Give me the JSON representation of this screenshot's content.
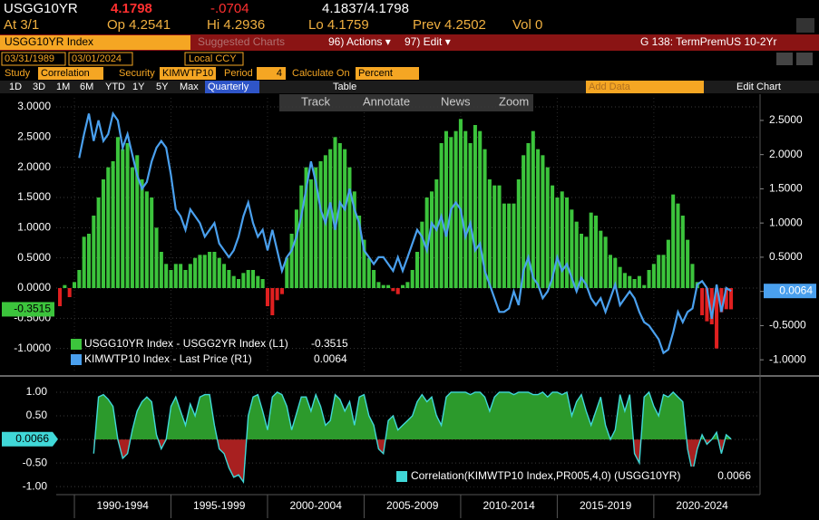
{
  "quote": {
    "ticker": "USGG10YR",
    "last": "4.1798",
    "change": "-.0704",
    "bid_ask": "4.1837/4.1798",
    "at": "At 3/1",
    "open": "Op 4.2541",
    "high": "Hi 4.2936",
    "low": "Lo 4.1759",
    "prev": "Prev 4.2502",
    "volume": "Vol 0"
  },
  "menu": {
    "security": "USGG10YR Index",
    "suggested": "Suggested Charts",
    "actions": "96) Actions ▾",
    "edit": "97) Edit ▾",
    "chart_name": "G 138: TermPremUS 10-2Yr"
  },
  "range": {
    "start": "03/31/1989",
    "end": "03/01/2024",
    "currency": "Local CCY"
  },
  "study": {
    "study_label": "Study",
    "study": "Correlation",
    "security_label": "Security",
    "security": "KIMWTP10",
    "period_label": "Period",
    "period": "4",
    "calc_label": "Calculate On",
    "calc": "Percent"
  },
  "toolbar": {
    "periods": [
      "1D",
      "3D",
      "1M",
      "6M",
      "YTD",
      "1Y",
      "5Y",
      "Max"
    ],
    "frequency": "Quarterly",
    "table": "Table",
    "add_data": "Add Data",
    "edit_chart": "Edit Chart"
  },
  "tools": [
    "Track",
    "Annotate",
    "News",
    "Zoom"
  ],
  "chart_data": [
    {
      "type": "bar_line",
      "x": [
        1989.25,
        1989.5,
        1989.75,
        1990,
        1990.25,
        1990.5,
        1990.75,
        1991,
        1991.25,
        1991.5,
        1991.75,
        1992,
        1992.25,
        1992.5,
        1992.75,
        1993,
        1993.25,
        1993.5,
        1993.75,
        1994,
        1994.25,
        1994.5,
        1994.75,
        1995,
        1995.25,
        1995.5,
        1995.75,
        1996,
        1996.25,
        1996.5,
        1996.75,
        1997,
        1997.25,
        1997.5,
        1997.75,
        1998,
        1998.25,
        1998.5,
        1998.75,
        1999,
        1999.25,
        1999.5,
        1999.75,
        2000,
        2000.25,
        2000.5,
        2000.75,
        2001,
        2001.25,
        2001.5,
        2001.75,
        2002,
        2002.25,
        2002.5,
        2002.75,
        2003,
        2003.25,
        2003.5,
        2003.75,
        2004,
        2004.25,
        2004.5,
        2004.75,
        2005,
        2005.25,
        2005.5,
        2005.75,
        2006,
        2006.25,
        2006.5,
        2006.75,
        2007,
        2007.25,
        2007.5,
        2007.75,
        2008,
        2008.25,
        2008.5,
        2008.75,
        2009,
        2009.25,
        2009.5,
        2009.75,
        2010,
        2010.25,
        2010.5,
        2010.75,
        2011,
        2011.25,
        2011.5,
        2011.75,
        2012,
        2012.25,
        2012.5,
        2012.75,
        2013,
        2013.25,
        2013.5,
        2013.75,
        2014,
        2014.25,
        2014.5,
        2014.75,
        2015,
        2015.25,
        2015.5,
        2015.75,
        2016,
        2016.25,
        2016.5,
        2016.75,
        2017,
        2017.25,
        2017.5,
        2017.75,
        2018,
        2018.25,
        2018.5,
        2018.75,
        2019,
        2019.25,
        2019.5,
        2019.75,
        2020,
        2020.25,
        2020.5,
        2020.75,
        2021,
        2021.25,
        2021.5,
        2021.75,
        2022,
        2022.25,
        2022.5,
        2022.75,
        2023,
        2023.25,
        2023.5,
        2023.75,
        2024
      ],
      "xlim": [
        1989.06,
        2025.5
      ],
      "xticks": [
        {
          "value": 1990,
          "label": "1990-1994"
        },
        {
          "value": 1995,
          "label": "1995-1999"
        },
        {
          "value": 2000,
          "label": "2000-2004"
        },
        {
          "value": 2005,
          "label": "2005-2009"
        },
        {
          "value": 2010,
          "label": "2010-2014"
        },
        {
          "value": 2015,
          "label": "2015-2019"
        },
        {
          "value": 2020,
          "label": "2020-2024"
        }
      ],
      "ylim": [
        -1.38,
        3.15
      ],
      "yticks": [
        {
          "value": 3,
          "label": "3.0000"
        },
        {
          "value": 2.5,
          "label": "2.5000"
        },
        {
          "value": 2,
          "label": "2.0000"
        },
        {
          "value": 1.5,
          "label": "1.5000"
        },
        {
          "value": 1,
          "label": "1.0000"
        },
        {
          "value": 0.5,
          "label": "0.5000"
        },
        {
          "value": 0,
          "label": "0.0000"
        },
        {
          "value": -0.5,
          "label": "-0.5000"
        },
        {
          "value": -1,
          "label": "-1.0000"
        }
      ],
      "y2lim": [
        -1.17,
        2.83
      ],
      "y2ticks": [
        {
          "value": 2.5,
          "label": "2.5000"
        },
        {
          "value": 2,
          "label": "2.0000"
        },
        {
          "value": 1.5,
          "label": "1.5000"
        },
        {
          "value": 1,
          "label": "1.0000"
        },
        {
          "value": 0.5,
          "label": "0.5000"
        },
        {
          "value": 0,
          "label": "0.0000"
        },
        {
          "value": -0.5,
          "label": "-0.5000"
        },
        {
          "value": -1,
          "label": "-1.0000"
        }
      ],
      "grid": true,
      "series": [
        {
          "name": "USGG10YR Index - USGG2YR Index (L1)",
          "color": "#3cc43c",
          "negative_color": "#e02020",
          "axis": "y",
          "values": [
            -0.3,
            0.05,
            -0.15,
            0.1,
            0.3,
            0.85,
            0.9,
            1.2,
            1.5,
            1.8,
            2.0,
            2.1,
            2.5,
            2.3,
            2.4,
            2.0,
            2.2,
            1.8,
            1.6,
            1.5,
            1.0,
            0.6,
            0.4,
            0.3,
            0.4,
            0.4,
            0.3,
            0.4,
            0.5,
            0.55,
            0.55,
            0.6,
            0.6,
            0.5,
            0.4,
            0.3,
            0.2,
            0.15,
            0.25,
            0.3,
            0.3,
            0.2,
            0.15,
            -0.3,
            -0.45,
            -0.2,
            -0.1,
            0.5,
            0.9,
            1.3,
            1.7,
            2.0,
            1.8,
            2.0,
            2.1,
            2.2,
            2.3,
            2.5,
            2.4,
            2.3,
            2.0,
            1.6,
            1.2,
            0.8,
            0.5,
            0.3,
            0.1,
            0.05,
            0.05,
            -0.05,
            -0.1,
            0.05,
            0.1,
            0.3,
            0.6,
            1.1,
            1.5,
            1.6,
            1.8,
            2.4,
            2.6,
            2.5,
            2.6,
            2.8,
            2.6,
            2.4,
            2.7,
            2.6,
            2.3,
            1.8,
            1.7,
            1.7,
            1.4,
            1.4,
            1.4,
            1.8,
            2.2,
            2.4,
            2.6,
            2.3,
            2.2,
            2.0,
            1.7,
            1.5,
            1.6,
            1.5,
            1.3,
            1.1,
            0.9,
            0.85,
            1.25,
            1.2,
            0.95,
            0.85,
            0.55,
            0.5,
            0.35,
            0.25,
            0.2,
            0.15,
            0.2,
            0.05,
            0.3,
            0.4,
            0.55,
            0.55,
            0.8,
            1.55,
            1.4,
            1.2,
            0.8,
            0.4,
            0.1,
            -0.45,
            -0.55,
            -0.6,
            -1.0,
            -0.4,
            -0.35,
            -0.3515
          ]
        },
        {
          "name": "KIMWTP10 Index - Last Price (R1)",
          "color": "#4aa0ee",
          "axis": "y2",
          "values": [
            null,
            null,
            null,
            null,
            1.95,
            2.3,
            2.6,
            2.2,
            2.5,
            2.2,
            2.3,
            2.6,
            2.5,
            2.1,
            2.3,
            2.0,
            1.7,
            1.5,
            1.6,
            1.9,
            2.1,
            2.2,
            2.1,
            1.7,
            1.2,
            1.1,
            0.9,
            1.2,
            1.1,
            1.0,
            0.8,
            0.9,
            1.0,
            0.7,
            0.6,
            0.5,
            0.6,
            0.8,
            1.1,
            1.3,
            1.0,
            0.8,
            0.9,
            0.6,
            0.9,
            0.6,
            0.3,
            0.5,
            0.6,
            0.8,
            1.1,
            1.5,
            1.9,
            1.6,
            1.2,
            1.0,
            1.3,
            0.9,
            1.3,
            1.2,
            1.5,
            1.2,
            1.0,
            0.6,
            0.5,
            0.4,
            0.5,
            0.5,
            0.4,
            0.3,
            0.5,
            0.3,
            0.5,
            0.7,
            0.9,
            0.8,
            0.6,
            1.0,
            0.9,
            1.1,
            0.8,
            1.2,
            1.3,
            1.2,
            0.8,
            1.0,
            0.6,
            0.7,
            0.3,
            0.1,
            -0.1,
            -0.3,
            -0.3,
            -0.25,
            0.0,
            -0.2,
            0.3,
            0.5,
            0.2,
            0.1,
            -0.1,
            0.0,
            0.2,
            0.5,
            0.3,
            0.4,
            0.2,
            0.0,
            0.2,
            0.1,
            -0.1,
            -0.2,
            -0.1,
            -0.3,
            -0.1,
            0.1,
            -0.2,
            -0.1,
            0.0,
            -0.1,
            -0.3,
            -0.45,
            -0.5,
            -0.6,
            -0.7,
            -0.9,
            -0.85,
            -0.6,
            -0.3,
            -0.45,
            -0.3,
            -0.25,
            0.1,
            0.15,
            0.05,
            -0.4,
            0.1,
            -0.3,
            0.05,
            0.0064
          ]
        }
      ]
    },
    {
      "type": "area",
      "x": [
        1989.25,
        1989.5,
        1989.75,
        1990,
        1990.25,
        1990.5,
        1990.75,
        1991,
        1991.25,
        1991.5,
        1991.75,
        1992,
        1992.25,
        1992.5,
        1992.75,
        1993,
        1993.25,
        1993.5,
        1993.75,
        1994,
        1994.25,
        1994.5,
        1994.75,
        1995,
        1995.25,
        1995.5,
        1995.75,
        1996,
        1996.25,
        1996.5,
        1996.75,
        1997,
        1997.25,
        1997.5,
        1997.75,
        1998,
        1998.25,
        1998.5,
        1998.75,
        1999,
        1999.25,
        1999.5,
        1999.75,
        2000,
        2000.25,
        2000.5,
        2000.75,
        2001,
        2001.25,
        2001.5,
        2001.75,
        2002,
        2002.25,
        2002.5,
        2002.75,
        2003,
        2003.25,
        2003.5,
        2003.75,
        2004,
        2004.25,
        2004.5,
        2004.75,
        2005,
        2005.25,
        2005.5,
        2005.75,
        2006,
        2006.25,
        2006.5,
        2006.75,
        2007,
        2007.25,
        2007.5,
        2007.75,
        2008,
        2008.25,
        2008.5,
        2008.75,
        2009,
        2009.25,
        2009.5,
        2009.75,
        2010,
        2010.25,
        2010.5,
        2010.75,
        2011,
        2011.25,
        2011.5,
        2011.75,
        2012,
        2012.25,
        2012.5,
        2012.75,
        2013,
        2013.25,
        2013.5,
        2013.75,
        2014,
        2014.25,
        2014.5,
        2014.75,
        2015,
        2015.25,
        2015.5,
        2015.75,
        2016,
        2016.25,
        2016.5,
        2016.75,
        2017,
        2017.25,
        2017.5,
        2017.75,
        2018,
        2018.25,
        2018.5,
        2018.75,
        2019,
        2019.25,
        2019.5,
        2019.75,
        2020,
        2020.25,
        2020.5,
        2020.75,
        2021,
        2021.25,
        2021.5,
        2021.75,
        2022,
        2022.25,
        2022.5,
        2022.75,
        2023,
        2023.25,
        2023.5,
        2023.75,
        2024
      ],
      "xlim": [
        1989.06,
        2025.5
      ],
      "ylim": [
        -1.15,
        1.21
      ],
      "yticks": [
        {
          "value": 1,
          "label": "1.00"
        },
        {
          "value": 0.5,
          "label": "0.50"
        },
        {
          "value": 0,
          "label": "0.00"
        },
        {
          "value": -0.5,
          "label": "-0.50"
        },
        {
          "value": -1,
          "label": "-1.00"
        }
      ],
      "grid": true,
      "series": [
        {
          "name": "Correlation(KIMWTP10 Index,PR005,4,0) (USGG10YR)",
          "color": "#40d8d8",
          "positive_fill": "#2c9a2c",
          "negative_fill": "#a82020",
          "values": [
            null,
            null,
            null,
            null,
            null,
            null,
            null,
            -0.3,
            0.9,
            0.95,
            0.85,
            0.7,
            0.0,
            -0.4,
            -0.3,
            0.2,
            0.6,
            0.8,
            0.9,
            0.8,
            0.1,
            -0.2,
            0.0,
            0.7,
            0.9,
            0.6,
            0.3,
            0.75,
            0.5,
            0.9,
            0.95,
            0.95,
            0.3,
            -0.2,
            -0.3,
            -0.6,
            -0.8,
            -0.75,
            -0.9,
            0.5,
            0.9,
            0.95,
            0.6,
            0.2,
            0.9,
            1.0,
            0.95,
            0.7,
            0.2,
            0.55,
            0.9,
            0.9,
            0.6,
            0.95,
            0.7,
            0.3,
            0.4,
            0.95,
            0.85,
            0.6,
            0.8,
            0.3,
            0.9,
            0.95,
            0.5,
            0.3,
            -0.2,
            -0.3,
            0.4,
            0.5,
            0.2,
            0.3,
            0.4,
            0.5,
            0.8,
            0.95,
            0.8,
            0.9,
            0.5,
            0.3,
            0.9,
            1.0,
            1.0,
            1.0,
            1.0,
            0.95,
            1.0,
            1.0,
            0.9,
            0.6,
            0.9,
            1.0,
            1.0,
            1.0,
            0.95,
            1.0,
            1.0,
            1.0,
            0.95,
            0.95,
            1.0,
            0.9,
            1.0,
            1.0,
            0.95,
            1.0,
            0.5,
            0.8,
            0.95,
            0.6,
            0.3,
            0.6,
            0.9,
            0.3,
            0.0,
            0.2,
            0.95,
            0.6,
            0.95,
            -0.3,
            -0.5,
            0.9,
            1.0,
            0.7,
            0.5,
            0.95,
            0.9,
            1.0,
            0.9,
            0.8,
            -0.2,
            -0.7,
            -0.2,
            0.1,
            -0.1,
            0.0,
            0.15,
            -0.3,
            0.1,
            0.0066
          ]
        }
      ]
    }
  ]
}
